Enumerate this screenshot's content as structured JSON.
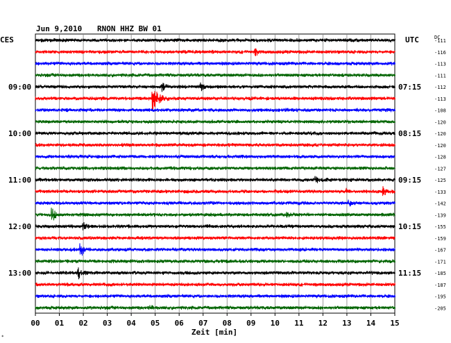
{
  "header": {
    "date": "Jun 9,2010",
    "station": "RNON HHZ BW 01",
    "left_timezone": "CES",
    "right_timezone": "UTC",
    "dc_label": "DC"
  },
  "chart_data": {
    "type": "line",
    "title": "Jun 9,2010   RNON HHZ BW 01",
    "xlabel": "Zeit [min]",
    "x_ticks": [
      "00",
      "01",
      "02",
      "03",
      "04",
      "05",
      "06",
      "07",
      "08",
      "09",
      "10",
      "11",
      "12",
      "13",
      "14",
      "15"
    ],
    "xlim": [
      0,
      15
    ],
    "grid": true,
    "left_time_labels": [
      {
        "row": 4,
        "label": "09:00"
      },
      {
        "row": 8,
        "label": "10:00"
      },
      {
        "row": 12,
        "label": "11:00"
      },
      {
        "row": 16,
        "label": "12:00"
      },
      {
        "row": 20,
        "label": "13:00"
      }
    ],
    "right_time_labels": [
      {
        "row": 4,
        "label": "07:15"
      },
      {
        "row": 8,
        "label": "08:15"
      },
      {
        "row": 12,
        "label": "09:15"
      },
      {
        "row": 16,
        "label": "10:15"
      },
      {
        "row": 20,
        "label": "11:15"
      }
    ],
    "dc_offsets": [
      -111,
      -116,
      -113,
      -111,
      -112,
      -113,
      -108,
      -120,
      -120,
      -120,
      -128,
      -127,
      -125,
      -133,
      -142,
      -139,
      -155,
      -159,
      -167,
      -171,
      -185,
      -187,
      -195,
      -205
    ],
    "row_colors": [
      "#000000",
      "#ff0000",
      "#0000ff",
      "#006400"
    ],
    "events": [
      {
        "row": 1,
        "minute": 9.2,
        "amp": 0.6
      },
      {
        "row": 4,
        "minute": 5.3,
        "amp": 0.9
      },
      {
        "row": 4,
        "minute": 6.9,
        "amp": 0.8
      },
      {
        "row": 5,
        "minute": 4.9,
        "amp": 2.6
      },
      {
        "row": 12,
        "minute": 11.7,
        "amp": 0.8
      },
      {
        "row": 13,
        "minute": 14.5,
        "amp": 1.3
      },
      {
        "row": 13,
        "minute": 13.0,
        "amp": 0.6
      },
      {
        "row": 13,
        "minute": 10.0,
        "amp": 0.5
      },
      {
        "row": 14,
        "minute": 13.1,
        "amp": 0.6
      },
      {
        "row": 15,
        "minute": 0.7,
        "amp": 1.6
      },
      {
        "row": 15,
        "minute": 10.5,
        "amp": 0.5
      },
      {
        "row": 16,
        "minute": 2.0,
        "amp": 0.7
      },
      {
        "row": 18,
        "minute": 1.9,
        "amp": 1.5
      },
      {
        "row": 20,
        "minute": 1.8,
        "amp": 1.2
      },
      {
        "row": 23,
        "minute": 4.8,
        "amp": 0.6
      }
    ]
  }
}
